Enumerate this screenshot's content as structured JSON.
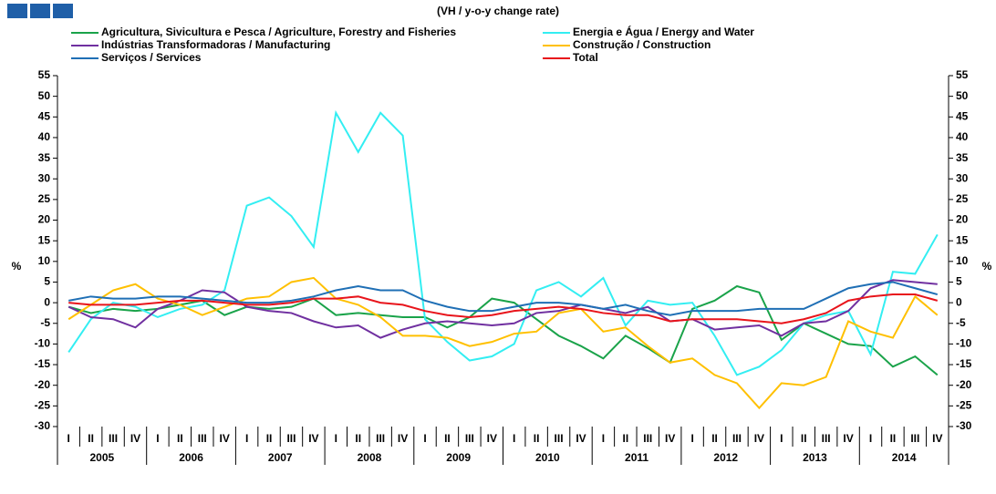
{
  "chart_data": {
    "type": "line",
    "subtitle": "(VH / y-o-y change rate)",
    "y_label": "%",
    "categories": [
      "I",
      "II",
      "III",
      "IV",
      "I",
      "II",
      "III",
      "IV",
      "I",
      "II",
      "III",
      "IV",
      "I",
      "II",
      "III",
      "IV",
      "I",
      "II",
      "III",
      "IV",
      "I",
      "II",
      "III",
      "IV",
      "I",
      "II",
      "III",
      "IV",
      "I",
      "II",
      "III",
      "IV",
      "I",
      "II",
      "III",
      "IV",
      "I",
      "II",
      "III",
      "IV"
    ],
    "years": [
      "2005",
      "2006",
      "2007",
      "2008",
      "2009",
      "2010",
      "2011",
      "2012",
      "2013",
      "2014"
    ],
    "ylim": [
      -30,
      55
    ],
    "yticks": [
      -30,
      -25,
      -20,
      -15,
      -10,
      -5,
      0,
      5,
      10,
      15,
      20,
      25,
      30,
      35,
      40,
      45,
      50,
      55
    ],
    "series": [
      {
        "name": "Agricultura, Sivicultura e Pesca / Agriculture, Forestry and Fisheries",
        "color": "#1aa34a",
        "values": [
          -1,
          -2.5,
          -1.5,
          -2,
          -1.5,
          -0.5,
          0.5,
          -3,
          -1,
          -1.5,
          -1,
          1,
          -3,
          -2.5,
          -3,
          -3.5,
          -3.5,
          -6,
          -3.5,
          1,
          0,
          -4,
          -8,
          -10.5,
          -13.5,
          -8,
          -11,
          -14.5,
          -1.5,
          0.5,
          4,
          2.5,
          -9,
          -5,
          -7.5,
          -10,
          -10.5,
          -15.5,
          -13,
          -17.5
        ]
      },
      {
        "name": "Energia e Água / Energy and Water",
        "color": "#33eef2",
        "values": [
          -12,
          -4,
          0,
          -1,
          -3.5,
          -1.5,
          -0.5,
          3,
          23.5,
          25.5,
          21,
          13.5,
          46,
          36.5,
          46,
          40.5,
          -4,
          -9.5,
          -14,
          -13,
          -10,
          3,
          5,
          1.5,
          6,
          -5.5,
          0.5,
          -0.5,
          0,
          -8,
          -17.5,
          -15.5,
          -11.5,
          -5,
          -3,
          -2,
          -12.5,
          7.5,
          7,
          16.5
        ]
      },
      {
        "name": "Indústrias Transformadoras / Manufacturing",
        "color": "#7030a0",
        "values": [
          -1,
          -3.5,
          -4,
          -6,
          -1.5,
          0.5,
          3,
          2.5,
          -1,
          -2,
          -2.5,
          -4.5,
          -6,
          -5.5,
          -8.5,
          -6.5,
          -5,
          -4.5,
          -5,
          -5.5,
          -5,
          -2.5,
          -2,
          -0.5,
          -1.5,
          -2.5,
          -1,
          -4.5,
          -4,
          -6.5,
          -6,
          -5.5,
          -8,
          -5,
          -4.5,
          -2,
          3.5,
          5.5,
          5,
          4.5
        ]
      },
      {
        "name": "Construção / Construction",
        "color": "#ffc000",
        "values": [
          -4,
          -0.5,
          3,
          4.5,
          1,
          -0.5,
          -3,
          -1,
          1,
          1.5,
          5,
          6,
          1,
          -0.5,
          -3.5,
          -8,
          -8,
          -8.5,
          -10.5,
          -9.5,
          -7.5,
          -7,
          -2.5,
          -1.5,
          -7,
          -6,
          -10.5,
          -14.5,
          -13.5,
          -17.5,
          -19.5,
          -25.5,
          -19.5,
          -20,
          -18,
          -4.5,
          -7,
          -8.5,
          1.5,
          -3
        ]
      },
      {
        "name": "Serviços / Services",
        "color": "#1f6fb5",
        "values": [
          0.5,
          1.5,
          1,
          1,
          1.5,
          1.5,
          1,
          0.5,
          0,
          0,
          0.5,
          1.5,
          3,
          4,
          3,
          3,
          0.5,
          -1,
          -2,
          -2,
          -1,
          0,
          0,
          -0.5,
          -1.5,
          -0.5,
          -2,
          -3,
          -2,
          -2,
          -2,
          -1.5,
          -1.5,
          -1.5,
          1,
          3.5,
          4.5,
          5,
          3.5,
          2
        ]
      },
      {
        "name": "Total",
        "color": "#e8141b",
        "values": [
          0,
          -0.5,
          -0.5,
          -0.5,
          0,
          0.5,
          0.5,
          0,
          -0.5,
          -0.5,
          0,
          1,
          1,
          1.5,
          0,
          -0.5,
          -2,
          -3,
          -3.5,
          -3,
          -2,
          -1.5,
          -1,
          -1.5,
          -2.5,
          -3,
          -3,
          -4.5,
          -4,
          -4,
          -4,
          -4.5,
          -5,
          -4,
          -2.5,
          0.5,
          1.5,
          2,
          2,
          0.5
        ]
      }
    ]
  }
}
